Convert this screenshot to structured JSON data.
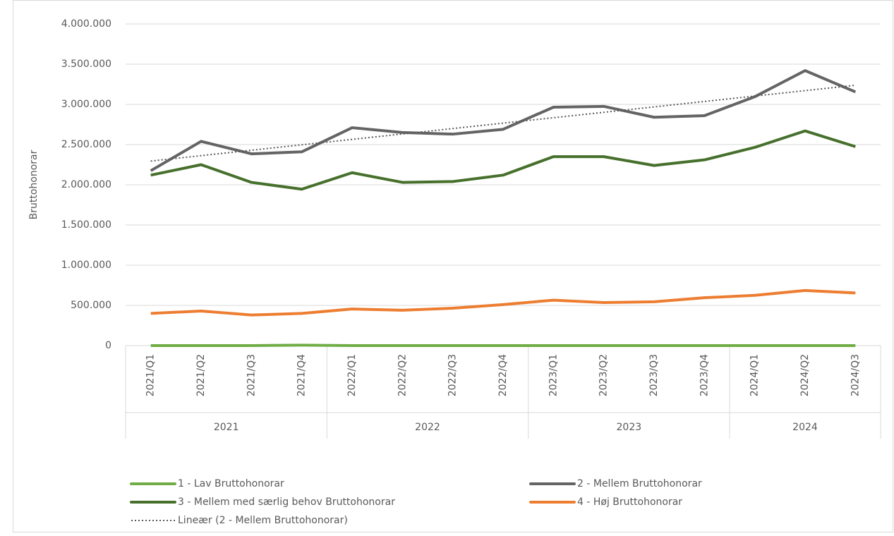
{
  "chart_data": {
    "type": "line",
    "y_label": "Bruttohonorar",
    "categories": [
      "2021/Q1",
      "2021/Q2",
      "2021/Q3",
      "2021/Q4",
      "2022/Q1",
      "2022/Q2",
      "2022/Q3",
      "2022/Q4",
      "2023/Q1",
      "2023/Q2",
      "2023/Q3",
      "2023/Q4",
      "2024/Q1",
      "2024/Q2",
      "2024/Q3"
    ],
    "x_groups": [
      "2021",
      "2022",
      "2023",
      "2024"
    ],
    "series": [
      {
        "name": "1 - Lav Bruttohonorar",
        "color": "#70ad47",
        "values": [
          0,
          0,
          0,
          5000,
          0,
          0,
          0,
          0,
          0,
          0,
          0,
          0,
          0,
          0,
          0
        ]
      },
      {
        "name": "2 - Mellem Bruttohonorar",
        "color": "#646464",
        "values": [
          2175000,
          2540000,
          2385000,
          2410000,
          2710000,
          2650000,
          2630000,
          2690000,
          2965000,
          2975000,
          2840000,
          2860000,
          3095000,
          3420000,
          3155000
        ]
      },
      {
        "name": "3 - Mellem med særlig behov Bruttohonorar",
        "color": "#46702c",
        "values": [
          2120000,
          2250000,
          2030000,
          1945000,
          2150000,
          2030000,
          2040000,
          2120000,
          2350000,
          2350000,
          2240000,
          2310000,
          2465000,
          2670000,
          2475000
        ]
      },
      {
        "name": "4 - Høj Bruttohonorar",
        "color": "#ed7d31",
        "values": [
          400000,
          430000,
          380000,
          400000,
          455000,
          440000,
          465000,
          510000,
          565000,
          535000,
          545000,
          595000,
          625000,
          685000,
          655000
        ]
      }
    ],
    "trendline": {
      "name": "Lineær (2 - Mellem Bruttohonorar)",
      "type": "linear",
      "series": 1,
      "color": "#595959"
    },
    "ylim": [
      0,
      4000000
    ],
    "yticks": [
      0,
      {
        "value": 500000,
        "label": "500.000"
      },
      {
        "value": 1000000,
        "label": "1.000.000"
      },
      {
        "value": 1500000,
        "label": "1.500.000"
      },
      {
        "value": 2000000,
        "label": "2.000.000"
      },
      {
        "value": 2500000,
        "label": "2.500.000"
      },
      {
        "value": 3000000,
        "label": "3.000.000"
      },
      {
        "value": 3500000,
        "label": "3.500.000"
      },
      {
        "value": 4000000,
        "label": "4.000.000"
      }
    ],
    "grid": true
  }
}
